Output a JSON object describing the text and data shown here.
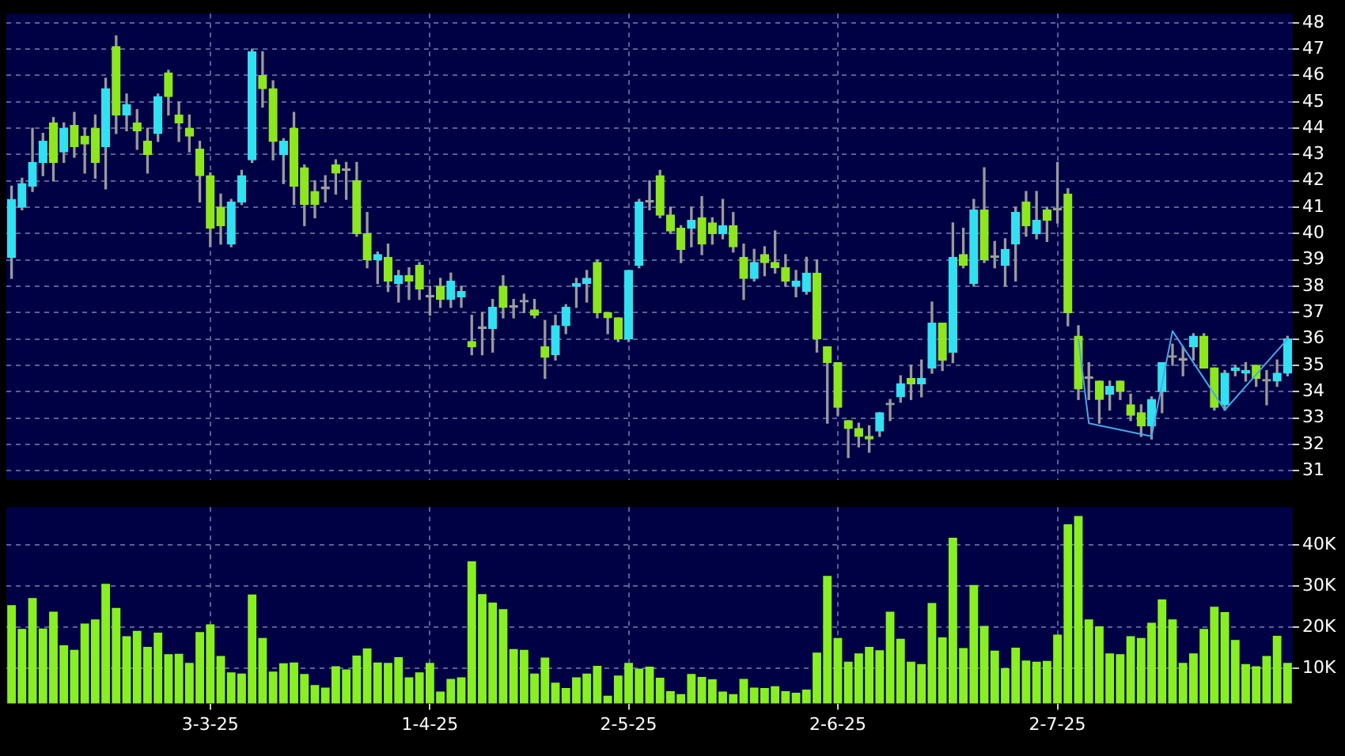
{
  "chart_data": [
    {
      "type": "candlestick",
      "categories": [
        null,
        null,
        null,
        null,
        null,
        null,
        null,
        null,
        null,
        null,
        null,
        null,
        null,
        null,
        null,
        null,
        null,
        null,
        null,
        null,
        null,
        null,
        null,
        null,
        null,
        null,
        null,
        null,
        null,
        null,
        null,
        null,
        null,
        null,
        null,
        null,
        null,
        null,
        null,
        null,
        null,
        null,
        null,
        null,
        null,
        null,
        null,
        null,
        null,
        null,
        null,
        null,
        null,
        null,
        null,
        null,
        null,
        null,
        null,
        null,
        null,
        null,
        null,
        null,
        null,
        null,
        null,
        null,
        null,
        null,
        null,
        null,
        null,
        null,
        null,
        null,
        null,
        null,
        null,
        null,
        null,
        null,
        null,
        null,
        null,
        null,
        null,
        null,
        null,
        null,
        null,
        null,
        null,
        null,
        null,
        null,
        null,
        null,
        null,
        null,
        null,
        null,
        null,
        null,
        null,
        null,
        null,
        null,
        null,
        null,
        null,
        null,
        null,
        null,
        null,
        null,
        null,
        null,
        null,
        null,
        null,
        null,
        null
      ],
      "ohlc": [
        [
          39.1,
          41.8,
          38.3,
          41.3
        ],
        [
          41.0,
          42.1,
          40.9,
          41.9
        ],
        [
          41.8,
          44.0,
          41.6,
          42.7
        ],
        [
          42.7,
          43.8,
          42.2,
          43.5
        ],
        [
          44.2,
          44.4,
          42.0,
          42.7
        ],
        [
          43.1,
          44.2,
          42.7,
          44.0
        ],
        [
          44.1,
          44.6,
          42.9,
          43.3
        ],
        [
          43.7,
          44.0,
          42.3,
          43.4
        ],
        [
          44.0,
          44.5,
          42.1,
          42.7
        ],
        [
          43.3,
          45.9,
          41.7,
          45.5
        ],
        [
          47.1,
          47.5,
          43.8,
          44.5
        ],
        [
          44.5,
          45.3,
          43.9,
          44.9
        ],
        [
          44.2,
          44.7,
          43.2,
          43.9
        ],
        [
          43.5,
          44.0,
          42.3,
          43.0
        ],
        [
          43.8,
          45.3,
          43.5,
          45.2
        ],
        [
          46.1,
          46.2,
          44.5,
          45.2
        ],
        [
          44.5,
          45.0,
          43.5,
          44.2
        ],
        [
          44.0,
          44.5,
          43.1,
          43.7
        ],
        [
          43.2,
          43.5,
          41.2,
          42.2
        ],
        [
          42.2,
          42.3,
          39.5,
          40.2
        ],
        [
          41.0,
          41.5,
          39.6,
          40.3
        ],
        [
          39.6,
          41.3,
          39.5,
          41.2
        ],
        [
          41.2,
          42.4,
          41.1,
          42.2
        ],
        [
          42.8,
          47.0,
          42.7,
          46.9
        ],
        [
          46.0,
          46.9,
          44.8,
          45.5
        ],
        [
          45.5,
          45.8,
          42.8,
          43.5
        ],
        [
          43.0,
          43.6,
          41.9,
          43.5
        ],
        [
          44.0,
          44.6,
          41.1,
          41.8
        ],
        [
          42.5,
          42.6,
          40.3,
          41.1
        ],
        [
          41.6,
          42.0,
          40.6,
          41.1
        ],
        [
          41.7,
          42.2,
          41.2,
          41.7
        ],
        [
          42.6,
          42.8,
          41.5,
          42.3
        ],
        [
          42.4,
          42.7,
          41.3,
          42.4
        ],
        [
          42.0,
          42.7,
          39.9,
          40.0
        ],
        [
          40.0,
          40.8,
          38.7,
          39.0
        ],
        [
          39.0,
          39.3,
          38.1,
          39.2
        ],
        [
          39.1,
          39.6,
          37.8,
          38.2
        ],
        [
          38.1,
          38.6,
          37.4,
          38.4
        ],
        [
          38.4,
          38.7,
          37.5,
          38.2
        ],
        [
          38.8,
          38.9,
          37.5,
          37.9
        ],
        [
          37.6,
          38.0,
          36.9,
          37.6
        ],
        [
          38.0,
          38.3,
          37.2,
          37.5
        ],
        [
          37.5,
          38.5,
          37.2,
          38.2
        ],
        [
          37.6,
          38.0,
          37.2,
          37.8
        ],
        [
          35.9,
          36.9,
          35.4,
          35.7
        ],
        [
          36.4,
          37.0,
          35.4,
          36.4
        ],
        [
          36.4,
          37.5,
          35.5,
          37.2
        ],
        [
          38.0,
          38.4,
          36.8,
          37.2
        ],
        [
          37.2,
          37.5,
          36.8,
          37.2
        ],
        [
          37.4,
          37.7,
          37.0,
          37.4
        ],
        [
          37.1,
          37.5,
          36.8,
          36.9
        ],
        [
          35.7,
          36.7,
          34.5,
          35.3
        ],
        [
          35.4,
          36.9,
          35.2,
          36.5
        ],
        [
          36.5,
          37.3,
          36.2,
          37.2
        ],
        [
          38.0,
          38.3,
          37.2,
          38.1
        ],
        [
          38.1,
          38.6,
          37.4,
          38.3
        ],
        [
          38.9,
          39.0,
          36.8,
          37.0
        ],
        [
          37.0,
          37.0,
          36.2,
          36.8
        ],
        [
          36.8,
          36.8,
          35.9,
          36.0
        ],
        [
          36.0,
          38.6,
          35.9,
          38.6
        ],
        [
          38.8,
          41.3,
          38.7,
          41.2
        ],
        [
          41.2,
          42.0,
          40.9,
          41.2
        ],
        [
          42.2,
          42.4,
          40.6,
          40.7
        ],
        [
          40.7,
          41.0,
          40.0,
          40.1
        ],
        [
          40.2,
          40.3,
          38.9,
          39.4
        ],
        [
          40.2,
          41.0,
          39.5,
          40.5
        ],
        [
          40.6,
          41.4,
          39.2,
          39.6
        ],
        [
          40.4,
          40.6,
          39.6,
          40.0
        ],
        [
          40.0,
          41.3,
          39.8,
          40.3
        ],
        [
          40.3,
          40.8,
          39.3,
          39.5
        ],
        [
          39.1,
          39.6,
          37.5,
          38.3
        ],
        [
          38.3,
          39.4,
          38.2,
          38.9
        ],
        [
          39.2,
          39.5,
          38.4,
          38.9
        ],
        [
          38.9,
          40.1,
          38.5,
          38.7
        ],
        [
          38.7,
          39.2,
          38.0,
          38.2
        ],
        [
          38.0,
          38.6,
          37.6,
          38.2
        ],
        [
          37.8,
          39.1,
          37.7,
          38.5
        ],
        [
          38.5,
          39.0,
          35.5,
          36.0
        ],
        [
          35.7,
          35.7,
          32.8,
          35.1
        ],
        [
          35.1,
          35.1,
          33.1,
          33.4
        ],
        [
          32.9,
          32.9,
          31.5,
          32.6
        ],
        [
          32.6,
          32.8,
          31.9,
          32.3
        ],
        [
          32.3,
          32.7,
          31.7,
          32.2
        ],
        [
          32.5,
          33.2,
          32.3,
          33.2
        ],
        [
          33.5,
          33.7,
          32.9,
          33.5
        ],
        [
          33.8,
          34.6,
          33.6,
          34.3
        ],
        [
          34.5,
          35.0,
          33.7,
          34.3
        ],
        [
          34.3,
          35.2,
          33.8,
          34.5
        ],
        [
          34.9,
          37.4,
          34.7,
          36.6
        ],
        [
          36.6,
          36.6,
          34.8,
          35.2
        ],
        [
          35.5,
          40.4,
          35.1,
          39.1
        ],
        [
          39.2,
          40.2,
          38.7,
          38.8
        ],
        [
          38.1,
          41.3,
          38.0,
          40.9
        ],
        [
          40.9,
          42.5,
          38.9,
          39.0
        ],
        [
          39.1,
          39.7,
          38.7,
          39.1
        ],
        [
          38.8,
          39.8,
          38.0,
          39.4
        ],
        [
          39.6,
          41.0,
          38.2,
          40.8
        ],
        [
          41.2,
          41.6,
          39.9,
          40.3
        ],
        [
          40.0,
          41.6,
          39.8,
          40.5
        ],
        [
          40.9,
          41.0,
          39.7,
          40.5
        ],
        [
          40.9,
          42.7,
          40.4,
          40.9
        ],
        [
          41.5,
          41.7,
          36.5,
          37.0
        ],
        [
          36.1,
          36.5,
          33.7,
          34.1
        ],
        [
          34.5,
          35.1,
          33.7,
          34.5
        ],
        [
          34.4,
          34.4,
          32.8,
          33.7
        ],
        [
          33.9,
          34.4,
          33.3,
          34.2
        ],
        [
          34.4,
          34.4,
          33.7,
          34.0
        ],
        [
          33.5,
          33.9,
          32.9,
          33.1
        ],
        [
          33.2,
          33.5,
          32.3,
          32.7
        ],
        [
          32.7,
          33.8,
          32.2,
          33.7
        ],
        [
          34.0,
          35.1,
          33.2,
          35.1
        ],
        [
          35.3,
          35.8,
          35.0,
          35.3
        ],
        [
          35.2,
          35.7,
          34.6,
          35.2
        ],
        [
          35.7,
          36.2,
          35.2,
          36.1
        ],
        [
          36.1,
          36.2,
          34.9,
          34.9
        ],
        [
          34.9,
          34.9,
          33.3,
          33.4
        ],
        [
          33.5,
          34.8,
          33.3,
          34.7
        ],
        [
          34.8,
          35.0,
          34.6,
          34.9
        ],
        [
          34.7,
          35.1,
          34.4,
          34.8
        ],
        [
          35.0,
          35.0,
          34.2,
          34.5
        ],
        [
          34.4,
          34.8,
          33.5,
          34.4
        ],
        [
          34.4,
          35.2,
          34.2,
          34.7
        ],
        [
          34.7,
          36.1,
          34.6,
          36.0
        ]
      ],
      "colors": [
        "#33e0f0",
        "#33e0f0",
        "#33e0f0",
        "#33e0f0",
        "#8ee61e",
        "#33e0f0",
        "#8ee61e",
        "#8ee61e",
        "#8ee61e",
        "#33e0f0",
        "#8ee61e",
        "#33e0f0",
        "#8ee61e",
        "#8ee61e",
        "#33e0f0",
        "#8ee61e",
        "#8ee61e",
        "#8ee61e",
        "#8ee61e",
        "#8ee61e",
        "#8ee61e",
        "#33e0f0",
        "#33e0f0",
        "#33e0f0",
        "#8ee61e",
        "#8ee61e",
        "#33e0f0",
        "#8ee61e",
        "#8ee61e",
        "#8ee61e",
        "#a0a0a0",
        "#8ee61e",
        "#a0a0a0",
        "#8ee61e",
        "#8ee61e",
        "#33e0f0",
        "#8ee61e",
        "#33e0f0",
        "#8ee61e",
        "#8ee61e",
        "#a0a0a0",
        "#8ee61e",
        "#33e0f0",
        "#33e0f0",
        "#8ee61e",
        "#a0a0a0",
        "#33e0f0",
        "#8ee61e",
        "#a0a0a0",
        "#a0a0a0",
        "#8ee61e",
        "#8ee61e",
        "#33e0f0",
        "#33e0f0",
        "#33e0f0",
        "#33e0f0",
        "#8ee61e",
        "#8ee61e",
        "#8ee61e",
        "#33e0f0",
        "#33e0f0",
        "#a0a0a0",
        "#8ee61e",
        "#8ee61e",
        "#8ee61e",
        "#33e0f0",
        "#8ee61e",
        "#8ee61e",
        "#33e0f0",
        "#8ee61e",
        "#8ee61e",
        "#33e0f0",
        "#8ee61e",
        "#8ee61e",
        "#8ee61e",
        "#33e0f0",
        "#33e0f0",
        "#8ee61e",
        "#8ee61e",
        "#8ee61e",
        "#8ee61e",
        "#8ee61e",
        "#8ee61e",
        "#33e0f0",
        "#a0a0a0",
        "#33e0f0",
        "#8ee61e",
        "#33e0f0",
        "#33e0f0",
        "#8ee61e",
        "#33e0f0",
        "#8ee61e",
        "#33e0f0",
        "#8ee61e",
        "#a0a0a0",
        "#33e0f0",
        "#33e0f0",
        "#8ee61e",
        "#33e0f0",
        "#8ee61e",
        "#a0a0a0",
        "#8ee61e",
        "#8ee61e",
        "#a0a0a0",
        "#8ee61e",
        "#33e0f0",
        "#8ee61e",
        "#8ee61e",
        "#8ee61e",
        "#33e0f0",
        "#33e0f0",
        "#a0a0a0",
        "#a0a0a0",
        "#33e0f0",
        "#8ee61e",
        "#8ee61e",
        "#33e0f0",
        "#33e0f0",
        "#33e0f0",
        "#8ee61e",
        "#a0a0a0",
        "#33e0f0",
        "#33e0f0"
      ],
      "series": [
        {
          "type": "line",
          "color": "#4aa6e8",
          "values": [
            null,
            null,
            null,
            null,
            null,
            null,
            null,
            null,
            null,
            null,
            null,
            null,
            null,
            null,
            null,
            null,
            null,
            null,
            null,
            null,
            null,
            null,
            null,
            null,
            null,
            null,
            null,
            null,
            null,
            null,
            null,
            null,
            null,
            null,
            null,
            null,
            null,
            null,
            null,
            null,
            null,
            null,
            null,
            null,
            null,
            null,
            null,
            null,
            null,
            null,
            null,
            null,
            null,
            null,
            null,
            null,
            null,
            null,
            null,
            null,
            null,
            null,
            null,
            null,
            null,
            null,
            null,
            null,
            null,
            null,
            null,
            null,
            null,
            null,
            null,
            null,
            null,
            null,
            null,
            null,
            null,
            null,
            null,
            null,
            null,
            null,
            null,
            null,
            null,
            null,
            null,
            null,
            null,
            null,
            null,
            null,
            null,
            null,
            null,
            null,
            null,
            null,
            36.0,
            32.8,
            null,
            null,
            null,
            null,
            null,
            32.3,
            null,
            36.3,
            null,
            null,
            null,
            null,
            33.3,
            null,
            null,
            null,
            null,
            null,
            36.0
          ]
        }
      ],
      "ylim": [
        30.65,
        48.35
      ],
      "yticks": [
        31,
        32,
        33,
        34,
        35,
        36,
        37,
        38,
        39,
        40,
        41,
        42,
        43,
        44,
        45,
        46,
        47,
        48
      ],
      "grid": true,
      "tick_labels": "y"
    },
    {
      "type": "bar",
      "categories": [
        null,
        null,
        null,
        null,
        null,
        null,
        null,
        null,
        null,
        null,
        null,
        null,
        null,
        null,
        null,
        null,
        null,
        null,
        null,
        "3-3-25",
        null,
        null,
        null,
        null,
        null,
        null,
        null,
        null,
        null,
        null,
        null,
        null,
        null,
        null,
        null,
        null,
        null,
        null,
        null,
        null,
        "1-4-25",
        null,
        null,
        null,
        null,
        null,
        null,
        null,
        null,
        null,
        null,
        null,
        null,
        null,
        null,
        null,
        null,
        null,
        null,
        "2-5-25",
        null,
        null,
        null,
        null,
        null,
        null,
        null,
        null,
        null,
        null,
        null,
        null,
        null,
        null,
        null,
        null,
        null,
        null,
        null,
        "2-6-25",
        null,
        null,
        null,
        null,
        null,
        null,
        null,
        null,
        null,
        null,
        null,
        null,
        null,
        null,
        null,
        null,
        null,
        null,
        null,
        null,
        "2-7-25",
        null,
        null,
        null,
        null,
        null,
        null,
        null,
        null,
        null,
        null,
        null,
        null,
        null,
        null,
        null,
        null,
        null,
        null,
        null,
        null,
        null,
        null
      ],
      "values": [
        25400,
        19600,
        27100,
        19700,
        23800,
        15600,
        14500,
        20900,
        21900,
        30600,
        24700,
        17800,
        19100,
        15200,
        18700,
        13400,
        13500,
        11300,
        18800,
        20700,
        13000,
        9000,
        8700,
        28000,
        17400,
        9200,
        11200,
        11400,
        8600,
        5900,
        5300,
        10500,
        9700,
        13100,
        14800,
        11400,
        11300,
        12700,
        7800,
        9000,
        11300,
        4300,
        7400,
        7800,
        36100,
        28100,
        26000,
        24400,
        14700,
        14500,
        8700,
        12600,
        6500,
        5200,
        7800,
        8700,
        10600,
        3300,
        8200,
        11300,
        9900,
        10400,
        7700,
        4400,
        3700,
        8600,
        7900,
        7300,
        4300,
        3700,
        7400,
        5300,
        5200,
        5600,
        4400,
        4000,
        4800,
        13800,
        32500,
        17400,
        11600,
        13600,
        15200,
        14400,
        23800,
        17200,
        11600,
        11000,
        25900,
        17500,
        41800,
        14900,
        30300,
        20300,
        14300,
        10000,
        15000,
        11900,
        11600,
        11800,
        18200,
        45100,
        47100,
        21900,
        20200,
        13600,
        13400,
        17800,
        17400,
        21100,
        26800,
        21900,
        11300,
        13600,
        19600,
        25000,
        23700,
        16900,
        11000,
        10500,
        13000,
        17900,
        11300
      ],
      "color": "#88f022",
      "ylim": [
        1400,
        49300
      ],
      "yticks": [
        {
          "value": 10000,
          "label": "10K"
        },
        {
          "value": 20000,
          "label": "20K"
        },
        {
          "value": 30000,
          "label": "30K"
        },
        {
          "value": 40000,
          "label": "40K"
        }
      ],
      "grid": true
    }
  ]
}
